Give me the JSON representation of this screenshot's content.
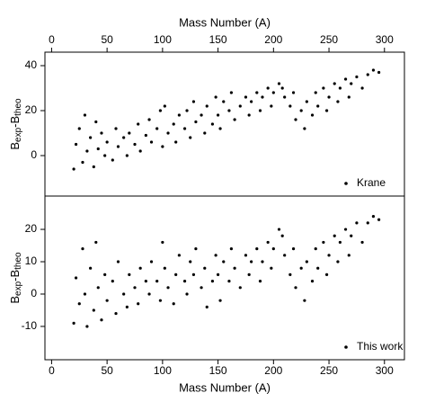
{
  "chart_data": [
    {
      "type": "scatter",
      "title": "Mass Number (A)",
      "xaxis_position": "top",
      "y_label_parts": [
        "B",
        "exp",
        "-B",
        "theo"
      ],
      "legend": "Krane",
      "legend_position": "lower right",
      "color": "#000000",
      "xlim": [
        -6,
        318
      ],
      "xticks": [
        0,
        50,
        100,
        150,
        200,
        250,
        300
      ],
      "ylim": [
        -18,
        46
      ],
      "yticks": [
        0,
        20,
        40
      ],
      "x": [
        20,
        22,
        25,
        28,
        30,
        32,
        35,
        38,
        40,
        42,
        45,
        48,
        50,
        55,
        58,
        60,
        65,
        68,
        70,
        75,
        78,
        80,
        85,
        88,
        90,
        95,
        98,
        100,
        102,
        105,
        110,
        112,
        115,
        120,
        122,
        125,
        128,
        130,
        135,
        138,
        140,
        145,
        148,
        150,
        152,
        155,
        160,
        162,
        165,
        170,
        175,
        178,
        180,
        185,
        188,
        190,
        195,
        198,
        200,
        205,
        208,
        210,
        215,
        218,
        220,
        225,
        228,
        230,
        235,
        238,
        240,
        245,
        248,
        250,
        255,
        258,
        260,
        265,
        268,
        270,
        275,
        280,
        285,
        290,
        295
      ],
      "y": [
        -6,
        5,
        12,
        -3,
        18,
        2,
        8,
        -5,
        15,
        3,
        10,
        0,
        6,
        -2,
        12,
        4,
        8,
        0,
        10,
        5,
        14,
        2,
        9,
        16,
        6,
        12,
        20,
        4,
        22,
        10,
        14,
        6,
        18,
        12,
        20,
        8,
        24,
        15,
        18,
        10,
        22,
        14,
        26,
        18,
        12,
        24,
        20,
        28,
        16,
        22,
        26,
        18,
        24,
        28,
        20,
        26,
        30,
        22,
        28,
        32,
        30,
        26,
        22,
        28,
        16,
        20,
        12,
        24,
        18,
        28,
        22,
        30,
        20,
        26,
        32,
        24,
        30,
        34,
        26,
        32,
        35,
        30,
        36,
        38,
        37
      ]
    },
    {
      "type": "scatter",
      "title": "Mass Number (A)",
      "xaxis_position": "bottom",
      "y_label_parts": [
        "B",
        "exp",
        "-B",
        "theo"
      ],
      "legend": "This work",
      "legend_position": "lower right",
      "color": "#000000",
      "xlim": [
        -6,
        318
      ],
      "xticks": [
        0,
        50,
        100,
        150,
        200,
        250,
        300
      ],
      "ylim": [
        -20.3,
        30.3
      ],
      "yticks": [
        -10,
        0,
        10,
        20
      ],
      "x": [
        20,
        22,
        25,
        28,
        30,
        32,
        35,
        38,
        40,
        42,
        45,
        48,
        50,
        55,
        58,
        60,
        65,
        68,
        70,
        75,
        78,
        80,
        85,
        88,
        90,
        95,
        98,
        100,
        102,
        105,
        110,
        112,
        115,
        120,
        122,
        125,
        128,
        130,
        135,
        138,
        140,
        145,
        148,
        150,
        152,
        155,
        160,
        162,
        165,
        170,
        175,
        178,
        180,
        185,
        188,
        190,
        195,
        198,
        200,
        205,
        208,
        210,
        215,
        218,
        220,
        225,
        228,
        230,
        235,
        238,
        240,
        245,
        248,
        250,
        255,
        258,
        260,
        265,
        268,
        270,
        275,
        280,
        285,
        290,
        295
      ],
      "y": [
        -9,
        5,
        -3,
        14,
        0,
        -10,
        8,
        -5,
        16,
        2,
        -8,
        6,
        -2,
        4,
        -6,
        10,
        0,
        -4,
        6,
        2,
        -3,
        8,
        4,
        0,
        10,
        4,
        -2,
        16,
        8,
        2,
        -3,
        6,
        12,
        4,
        0,
        10,
        6,
        14,
        2,
        8,
        -4,
        4,
        12,
        6,
        -2,
        10,
        4,
        14,
        8,
        2,
        12,
        6,
        10,
        14,
        4,
        10,
        16,
        8,
        14,
        20,
        18,
        12,
        6,
        14,
        2,
        8,
        -2,
        10,
        4,
        14,
        8,
        16,
        6,
        12,
        18,
        10,
        16,
        20,
        12,
        18,
        22,
        16,
        22,
        24,
        23
      ]
    }
  ]
}
